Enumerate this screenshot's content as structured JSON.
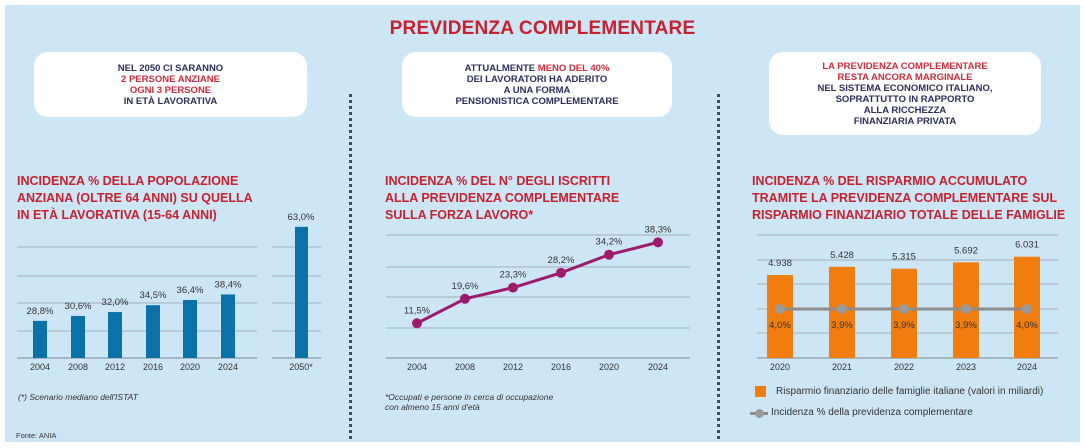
{
  "title": "PREVIDENZA COMPLEMENTARE",
  "callouts": [
    {
      "lines": [
        {
          "text": "NEL 2050 CI SARANNO",
          "highlight": false
        },
        {
          "text": "2 PERSONE ANZIANE",
          "highlight": true
        },
        {
          "text": "OGNI 3 PERSONE",
          "highlight": true
        },
        {
          "text": "IN ETÀ LAVORATIVA",
          "highlight": false
        }
      ]
    },
    {
      "line1_normal": "ATTUALMENTE ",
      "line1_red": "MENO DEL 40%",
      "lines": [
        {
          "text": "DEI LAVORATORI HA ADERITO",
          "highlight": false
        },
        {
          "text": "A UNA FORMA",
          "highlight": false
        },
        {
          "text": "PENSIONISTICA COMPLEMENTARE",
          "highlight": false
        }
      ]
    },
    {
      "lines": [
        {
          "text": "LA PREVIDENZA COMPLEMENTARE",
          "highlight": true
        },
        {
          "text": "RESTA ANCORA MARGINALE",
          "highlight": true
        },
        {
          "text": "NEL SISTEMA ECONOMICO ITALIANO,",
          "highlight": false
        },
        {
          "text": "SOPRATTUTTO IN RAPPORTO",
          "highlight": false
        },
        {
          "text": "ALLA RICCHEZZA",
          "highlight": false
        },
        {
          "text": "FINANZIARIA PRIVATA",
          "highlight": false
        }
      ]
    }
  ],
  "colors": {
    "background": "#cde6f6",
    "title_red": "#c8202f",
    "bar_blue": "#0a72a8",
    "line_purple": "#9e1a6e",
    "bar_orange": "#f07d0e",
    "line_grey": "#8c8c8c",
    "grid": "#8e9aa3"
  },
  "chart_data": [
    {
      "type": "bar",
      "title_lines": [
        "INCIDENZA % DELLA POPOLAZIONE",
        "ANZIANA (OLTRE 64 ANNI) SU QUELLA",
        "IN ETÀ LAVORATIVA (15-64 ANNI)"
      ],
      "categories": [
        "2004",
        "2008",
        "2012",
        "2016",
        "2020",
        "2024"
      ],
      "values": [
        28.8,
        30.6,
        32.0,
        34.5,
        36.4,
        38.4
      ],
      "value_labels": [
        "28,8%",
        "30,6%",
        "32,0%",
        "34,5%",
        "36,4%",
        "38,4%"
      ],
      "projection": {
        "category": "2050*",
        "value": 63.0,
        "value_label": "63,0%"
      },
      "ylim": [
        15.3,
        65
      ],
      "grid": true,
      "note": "(*) Scenario mediano dell'ISTAT"
    },
    {
      "type": "line",
      "title_lines": [
        "INCIDENZA % DEL N° DEGLI ISCRITTI",
        "ALLA PREVIDENZA COMPLEMENTARE",
        "SULLA FORZA LAVORO*"
      ],
      "categories": [
        "2004",
        "2008",
        "2012",
        "2016",
        "2020",
        "2024"
      ],
      "values": [
        11.5,
        19.6,
        23.3,
        28.2,
        34.2,
        38.3
      ],
      "value_labels": [
        "11,5%",
        "19,6%",
        "23,3%",
        "28,2%",
        "34,2%",
        "38,3%"
      ],
      "ylim": [
        0,
        40
      ],
      "grid": true,
      "note_lines": [
        "*Occupati e persone in cerca di occupazione",
        "con almeno 15 anni d'età"
      ]
    },
    {
      "type": "bar",
      "title_lines": [
        "INCIDENZA % DEL RISPARMIO ACCUMULATO",
        "TRAMITE LA PREVIDENZA COMPLEMENTARE SUL",
        "RISPARMIO FINANZIARIO TOTALE DELLE FAMIGLIE"
      ],
      "categories": [
        "2020",
        "2021",
        "2022",
        "2023",
        "2024"
      ],
      "series": [
        {
          "name": "Risparmio finanziario delle famiglie italiane (valori in miliardi)",
          "kind": "bar",
          "values": [
            4938,
            5428,
            5315,
            5692,
            6031
          ],
          "value_labels": [
            "4.938",
            "5.428",
            "5.315",
            "5.692",
            "6.031"
          ]
        },
        {
          "name": "Incidenza % della previdenza complementare",
          "kind": "line",
          "values": [
            4.0,
            3.9,
            3.9,
            3.9,
            4.0
          ],
          "value_labels": [
            "4,0%",
            "3,9%",
            "3,9%",
            "3,9%",
            "4,0%"
          ]
        }
      ],
      "ylim": [
        0,
        7300
      ],
      "grid": true,
      "legend_position": "bottom"
    }
  ],
  "source": "Fonte: ANIA"
}
